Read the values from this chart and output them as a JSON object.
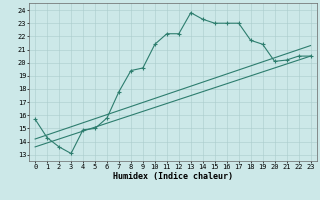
{
  "xlabel": "Humidex (Indice chaleur)",
  "xlim": [
    -0.5,
    23.5
  ],
  "ylim": [
    12.5,
    24.5
  ],
  "xticks": [
    0,
    1,
    2,
    3,
    4,
    5,
    6,
    7,
    8,
    9,
    10,
    11,
    12,
    13,
    14,
    15,
    16,
    17,
    18,
    19,
    20,
    21,
    22,
    23
  ],
  "yticks": [
    13,
    14,
    15,
    16,
    17,
    18,
    19,
    20,
    21,
    22,
    23,
    24
  ],
  "bg_color": "#cce8e8",
  "line_color": "#2d7d6e",
  "grid_color": "#aacccc",
  "series_main": {
    "x": [
      0,
      1,
      2,
      3,
      4,
      5,
      6,
      7,
      8,
      9,
      10,
      11,
      12,
      13,
      14,
      15,
      16,
      17,
      18,
      19,
      20,
      21,
      22,
      23
    ],
    "y": [
      15.7,
      14.3,
      13.6,
      13.1,
      14.9,
      15.0,
      15.8,
      17.8,
      19.4,
      19.6,
      21.4,
      22.2,
      22.2,
      23.8,
      23.3,
      23.0,
      23.0,
      23.0,
      21.7,
      21.4,
      20.1,
      20.2,
      20.5,
      20.5
    ]
  },
  "series_line1": {
    "x": [
      0,
      23
    ],
    "y": [
      14.2,
      21.3
    ]
  },
  "series_line2": {
    "x": [
      0,
      23
    ],
    "y": [
      13.6,
      20.5
    ]
  }
}
